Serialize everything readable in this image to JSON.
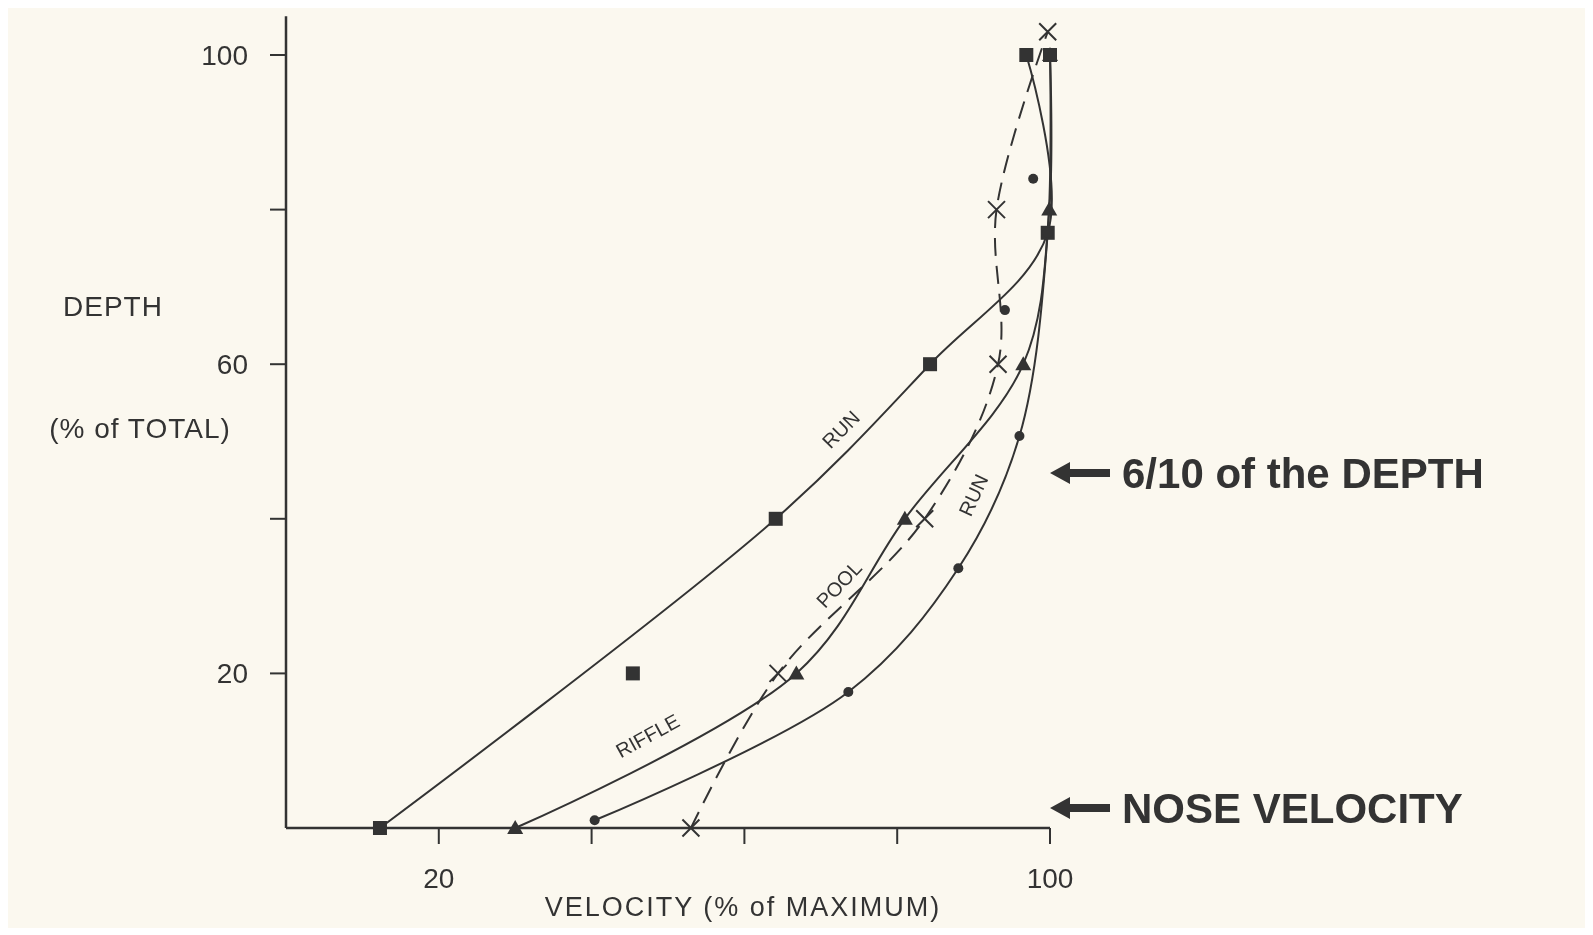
{
  "chart_data": {
    "type": "line",
    "xlabel": "VELOCITY (% of MAXIMUM)",
    "ylabel": "DEPTH\n(% of TOTAL)",
    "xlim": [
      0,
      100
    ],
    "xticks": [
      20,
      {
        "value": 40,
        "label": null
      },
      {
        "value": 60,
        "label": null
      },
      {
        "value": 80,
        "label": null
      },
      100
    ],
    "ylim": [
      0,
      105
    ],
    "yticks": [
      20,
      {
        "value": 40,
        "label": null
      },
      60,
      {
        "value": 80,
        "label": null
      },
      100
    ],
    "grid": false,
    "series": [
      {
        "name": "RUN",
        "color": "#333333",
        "marker": "square",
        "line_style": "solid",
        "x": [
          12.3,
          64.1,
          84.3,
          99.7,
          96.9
        ],
        "values": [
          0,
          40,
          60,
          77,
          100
        ]
      },
      {
        "type": "scatter",
        "color": "#333333",
        "marker": "square",
        "x": [
          45.4,
          100
        ],
        "values": [
          20,
          100
        ]
      },
      {
        "name": "RIFFLE",
        "color": "#333333",
        "marker": "triangle",
        "line_style": "solid",
        "x": [
          30,
          66.8,
          81,
          96.5,
          99.9,
          100
        ],
        "values": [
          0,
          20,
          40,
          60,
          80,
          100
        ]
      },
      {
        "name": "POOL",
        "color": "#333333",
        "marker": "cross",
        "line_style": "dashed",
        "x": [
          53,
          64.4,
          83.6,
          93.2,
          93,
          99.7
        ],
        "values": [
          0,
          20,
          40,
          60,
          80,
          103
        ]
      },
      {
        "name": "RUN",
        "color": "#333333",
        "marker": "circle",
        "line_style": "solid",
        "x": [
          40.4,
          73.6,
          88,
          96,
          99.7,
          100
        ],
        "values": [
          1,
          17.6,
          33.6,
          50.7,
          77,
          100
        ]
      },
      {
        "type": "scatter",
        "color": "#333333",
        "marker": "circle",
        "x": [
          94.1,
          97.8
        ],
        "values": [
          67,
          84
        ]
      }
    ],
    "annotations": [
      "6/10 of the DEPTH",
      "NOSE VELOCITY"
    ]
  }
}
